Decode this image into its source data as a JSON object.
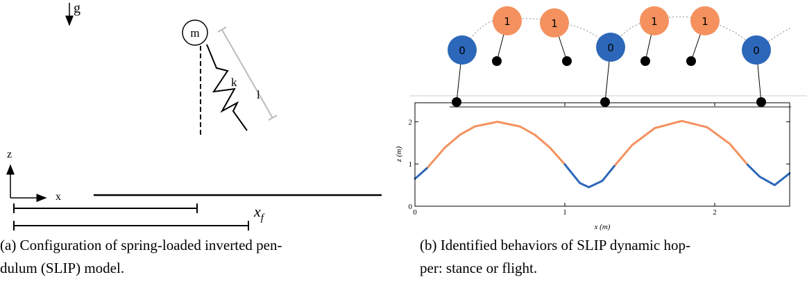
{
  "panel_a": {
    "gravity_label": "g",
    "mass_label": "m",
    "spring_label": "k",
    "length_label": "l",
    "z_axis_label": "z",
    "x_axis_label": "x",
    "distance_label": {
      "base": "x",
      "subscript": "f"
    },
    "caption": [
      "(a) Configuration of spring-loaded inverted pen-",
      "dulum (SLIP) model."
    ]
  },
  "panel_b": {
    "nodes": [
      {
        "label": "0"
      },
      {
        "label": "1"
      },
      {
        "label": "1"
      },
      {
        "label": "0"
      },
      {
        "label": "1"
      },
      {
        "label": "1"
      },
      {
        "label": "0"
      }
    ],
    "caption": [
      "(b) Identified behaviors of SLIP dynamic hop-",
      "per: stance or flight."
    ]
  },
  "chart_data": {
    "type": "line",
    "xlabel": "x (m)",
    "ylabel": "z (m)",
    "xlim": [
      0,
      2.5
    ],
    "ylim": [
      0,
      2.45
    ],
    "xticks": [
      0,
      1,
      2
    ],
    "yticks": [
      0,
      1,
      2
    ],
    "x": [
      0,
      0.08,
      0.2,
      0.3,
      0.4,
      0.55,
      0.7,
      0.8,
      0.9,
      1.0,
      1.1,
      1.16,
      1.25,
      1.33,
      1.45,
      1.6,
      1.78,
      1.95,
      2.1,
      2.22,
      2.3,
      2.4,
      2.5
    ],
    "series": [
      {
        "color": "#f4915e",
        "values": [
          null,
          0.9,
          1.39,
          1.69,
          1.89,
          2.0,
          1.89,
          1.69,
          1.39,
          0.99,
          null,
          null,
          null,
          0.95,
          1.45,
          1.85,
          2.02,
          1.87,
          1.48,
          0.98,
          null,
          null,
          null
        ]
      },
      {
        "color": "#2c67b9",
        "values": [
          0.65,
          0.9,
          null,
          null,
          null,
          null,
          null,
          null,
          null,
          0.99,
          0.55,
          0.45,
          0.6,
          0.95,
          null,
          null,
          null,
          null,
          null,
          0.98,
          0.7,
          0.5,
          0.78
        ]
      }
    ]
  }
}
